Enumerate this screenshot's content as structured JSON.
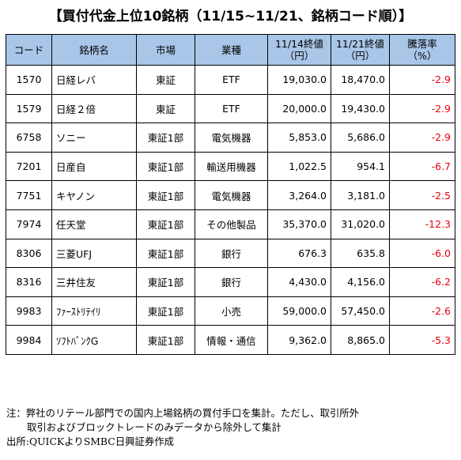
{
  "title": "【買付代金上位10銘柄（11/15~11/21、銘柄コード順）】",
  "headers": {
    "code": "コード",
    "name": "銘柄名",
    "market": "市場",
    "industry": "業種",
    "price_1114_line1": "11/14終値",
    "price_1114_line2": "（円）",
    "price_1121_line1": "11/21終値",
    "price_1121_line2": "（円）",
    "change_line1": "騰落率",
    "change_line2": "（%）"
  },
  "rows": [
    {
      "code": "1570",
      "name": "日経レバ",
      "market": "東証",
      "industry": "ETF",
      "price_1114": "19,030.0",
      "price_1121": "18,470.0",
      "change": "-2.9"
    },
    {
      "code": "1579",
      "name": "日経２倍",
      "market": "東証",
      "industry": "ETF",
      "price_1114": "20,000.0",
      "price_1121": "19,430.0",
      "change": "-2.9"
    },
    {
      "code": "6758",
      "name": "ソニー",
      "market": "東証1部",
      "industry": "電気機器",
      "price_1114": "5,853.0",
      "price_1121": "5,686.0",
      "change": "-2.9"
    },
    {
      "code": "7201",
      "name": "日産自",
      "market": "東証1部",
      "industry": "輸送用機器",
      "price_1114": "1,022.5",
      "price_1121": "954.1",
      "change": "-6.7"
    },
    {
      "code": "7751",
      "name": "キヤノン",
      "market": "東証1部",
      "industry": "電気機器",
      "price_1114": "3,264.0",
      "price_1121": "3,181.0",
      "change": "-2.5"
    },
    {
      "code": "7974",
      "name": "任天堂",
      "market": "東証1部",
      "industry": "その他製品",
      "price_1114": "35,370.0",
      "price_1121": "31,020.0",
      "change": "-12.3"
    },
    {
      "code": "8306",
      "name": "三菱UFJ",
      "market": "東証1部",
      "industry": "銀行",
      "price_1114": "676.3",
      "price_1121": "635.8",
      "change": "-6.0"
    },
    {
      "code": "8316",
      "name": "三井住友",
      "market": "東証1部",
      "industry": "銀行",
      "price_1114": "4,430.0",
      "price_1121": "4,156.0",
      "change": "-6.2"
    },
    {
      "code": "9983",
      "name": "ﾌｧｰｽﾄﾘﾃｲﾘ",
      "market": "東証1部",
      "industry": "小売",
      "price_1114": "59,000.0",
      "price_1121": "57,450.0",
      "change": "-2.6"
    },
    {
      "code": "9984",
      "name": "ｿﾌﾄﾊﾞﾝｸG",
      "market": "東証1部",
      "industry": "情報・通信",
      "price_1114": "9,362.0",
      "price_1121": "8,865.0",
      "change": "-5.3"
    }
  ],
  "notes": {
    "line1": "注：弊社のリテール部門での国内上場銘柄の買付手口を集計。ただし、取引所外",
    "line2": "取引およびブロックトレードのみデータから除外して集計",
    "source": "出所:QUICKよりSMBC日興証券作成"
  },
  "colors": {
    "header_bg": "#a9c6e8",
    "negative": "#e8000b"
  }
}
